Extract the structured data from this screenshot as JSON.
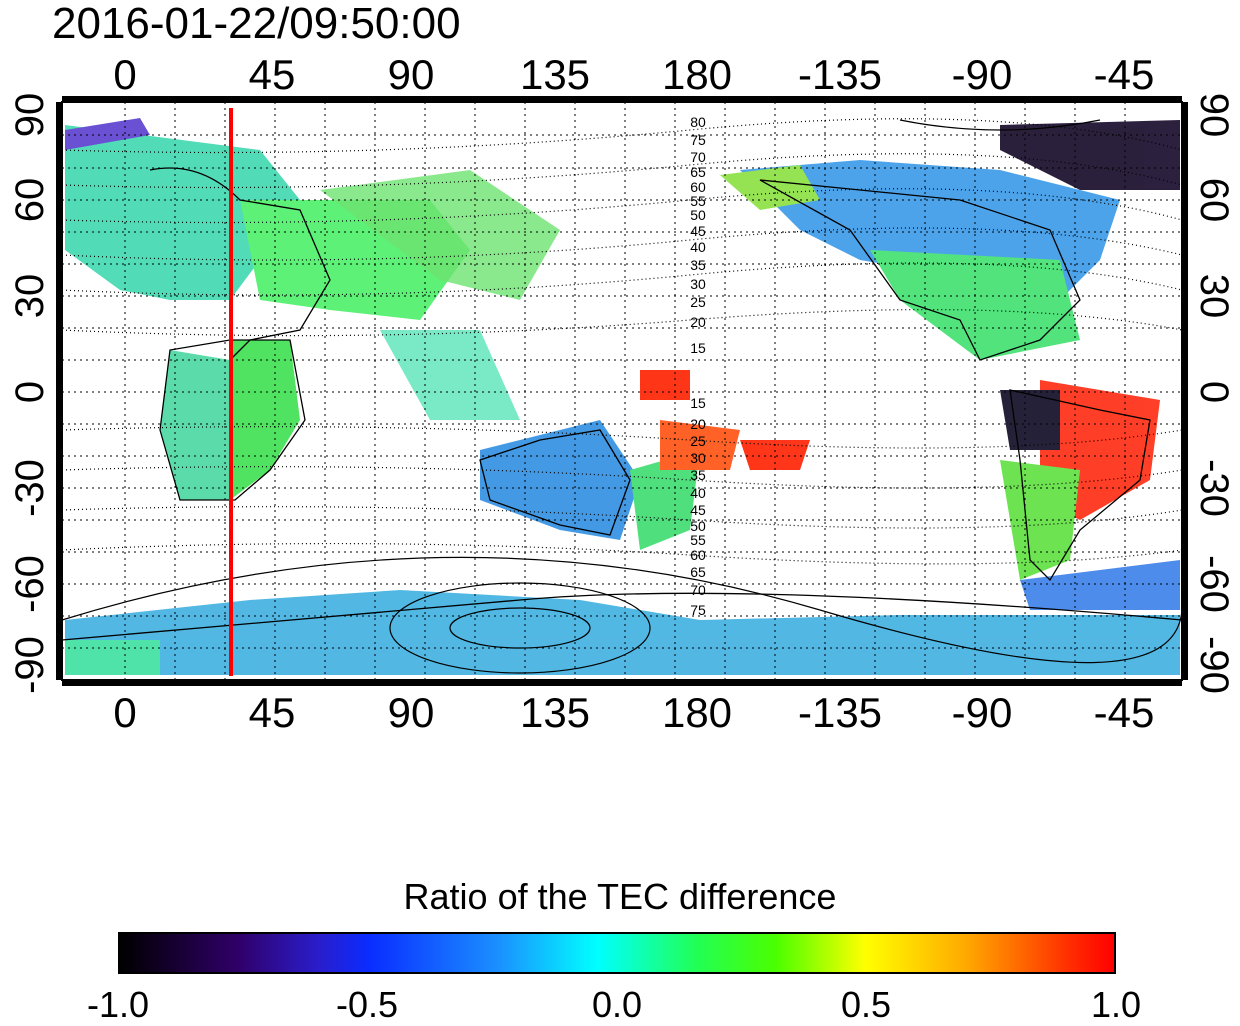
{
  "timestamp": "2016-01-22/09:50:00",
  "map": {
    "lon_ticks": [
      "0",
      "45",
      "90",
      "135",
      "180",
      "-135",
      "-90",
      "-45"
    ],
    "lat_ticks": [
      "90",
      "60",
      "30",
      "0",
      "-30",
      "-60",
      "-90"
    ],
    "contour_labels_north": [
      "80",
      "75",
      "70",
      "65",
      "60",
      "55",
      "50",
      "45",
      "40",
      "35",
      "30",
      "25",
      "20",
      "15"
    ],
    "contour_labels_south": [
      "15",
      "20",
      "25",
      "30",
      "35",
      "40",
      "45",
      "50",
      "55",
      "60",
      "65",
      "70",
      "75"
    ],
    "marker_line_color": "#ff0000",
    "marker_longitude": 35
  },
  "colorbar": {
    "title": "Ratio of the TEC difference",
    "labels": [
      "-1.0",
      "-0.5",
      "0.0",
      "0.5",
      "1.0"
    ],
    "colors": [
      "#000000",
      "#30006a",
      "#0a2cff",
      "#00ffff",
      "#21ff55",
      "#ffff00",
      "#ff3300",
      "#ff0000"
    ]
  }
}
